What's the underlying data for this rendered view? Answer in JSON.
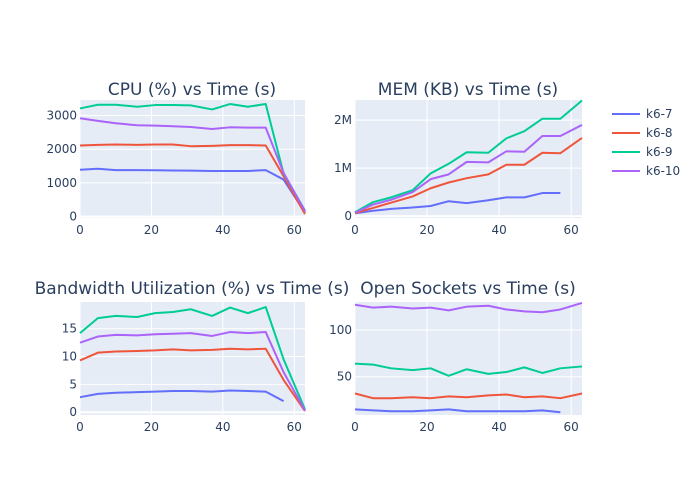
{
  "legend": [
    "k6-7",
    "k6-8",
    "k6-9",
    "k6-10"
  ],
  "colors": {
    "k6-7": "#636efa",
    "k6-8": "#ef553b",
    "k6-9": "#00cc96",
    "k6-10": "#ab63fa",
    "plot_bg": "#e5ecf6",
    "grid": "#ffffff",
    "text": "#2a3f5f"
  },
  "chart_data": [
    {
      "type": "line",
      "title": "CPU (%) vs Time (s)",
      "xlim": [
        0,
        63
      ],
      "ylim": [
        -40,
        3460
      ],
      "xticks": [
        0,
        20,
        40,
        60
      ],
      "yticks": [
        {
          "v": 0,
          "label": "0"
        },
        {
          "v": 1000,
          "label": "1000"
        },
        {
          "v": 2000,
          "label": "2000"
        },
        {
          "v": 3000,
          "label": "3000"
        }
      ],
      "series": [
        {
          "name": "k6-7",
          "x": [
            0,
            5,
            10,
            16,
            21,
            26,
            31,
            37,
            42,
            47,
            52,
            57,
            63
          ],
          "y": [
            1390,
            1420,
            1380,
            1380,
            1375,
            1370,
            1365,
            1355,
            1355,
            1355,
            1380,
            1100,
            120
          ]
        },
        {
          "name": "k6-8",
          "x": [
            0,
            5,
            10,
            16,
            21,
            26,
            31,
            37,
            42,
            47,
            52,
            57,
            63
          ],
          "y": [
            2110,
            2130,
            2140,
            2130,
            2140,
            2140,
            2090,
            2100,
            2120,
            2120,
            2110,
            1200,
            80
          ]
        },
        {
          "name": "k6-9",
          "x": [
            0,
            5,
            10,
            16,
            21,
            26,
            31,
            37,
            42,
            47,
            52,
            57,
            63
          ],
          "y": [
            3210,
            3320,
            3320,
            3260,
            3310,
            3310,
            3300,
            3180,
            3340,
            3260,
            3340,
            1280,
            180
          ]
        },
        {
          "name": "k6-10",
          "x": [
            0,
            5,
            10,
            16,
            21,
            26,
            31,
            37,
            42,
            47,
            52,
            57,
            63
          ],
          "y": [
            2920,
            2840,
            2770,
            2710,
            2700,
            2680,
            2660,
            2600,
            2650,
            2640,
            2640,
            1300,
            160
          ]
        }
      ]
    },
    {
      "type": "line",
      "title": "MEM (KB) vs Time (s)",
      "xlim": [
        0,
        63
      ],
      "ylim": [
        -40000,
        2420000
      ],
      "xticks": [
        0,
        20,
        40,
        60
      ],
      "yticks": [
        {
          "v": 0,
          "label": "0"
        },
        {
          "v": 1000000,
          "label": "1M"
        },
        {
          "v": 2000000,
          "label": "2M"
        }
      ],
      "series": [
        {
          "name": "k6-7",
          "x": [
            0,
            5,
            10,
            16,
            21,
            26,
            31,
            37,
            42,
            47,
            52,
            57
          ],
          "y": [
            60000,
            110000,
            150000,
            180000,
            210000,
            310000,
            270000,
            330000,
            390000,
            390000,
            480000,
            480000
          ]
        },
        {
          "name": "k6-8",
          "x": [
            0,
            5,
            10,
            16,
            21,
            26,
            31,
            37,
            42,
            47,
            52,
            57,
            63
          ],
          "y": [
            60000,
            170000,
            280000,
            410000,
            580000,
            700000,
            790000,
            870000,
            1070000,
            1070000,
            1320000,
            1310000,
            1630000
          ]
        },
        {
          "name": "k6-9",
          "x": [
            0,
            5,
            10,
            16,
            21,
            26,
            31,
            37,
            42,
            47,
            52,
            57,
            63
          ],
          "y": [
            80000,
            290000,
            390000,
            540000,
            890000,
            1090000,
            1330000,
            1320000,
            1620000,
            1770000,
            2030000,
            2030000,
            2410000
          ]
        },
        {
          "name": "k6-10",
          "x": [
            0,
            5,
            10,
            16,
            21,
            26,
            31,
            37,
            42,
            47,
            52,
            57,
            63
          ],
          "y": [
            70000,
            240000,
            340000,
            500000,
            770000,
            870000,
            1130000,
            1120000,
            1350000,
            1340000,
            1670000,
            1670000,
            1900000
          ]
        }
      ]
    },
    {
      "type": "line",
      "title": "Bandwidth Utilization (%) vs Time (s)",
      "xlim": [
        0,
        63
      ],
      "ylim": [
        -0.5,
        19.8
      ],
      "xticks": [
        0,
        20,
        40,
        60
      ],
      "yticks": [
        {
          "v": 0,
          "label": "0"
        },
        {
          "v": 5,
          "label": "5"
        },
        {
          "v": 10,
          "label": "10"
        },
        {
          "v": 15,
          "label": "15"
        }
      ],
      "series": [
        {
          "name": "k6-7",
          "x": [
            0,
            5,
            10,
            16,
            21,
            26,
            31,
            37,
            42,
            47,
            52,
            57
          ],
          "y": [
            2.7,
            3.3,
            3.5,
            3.6,
            3.7,
            3.8,
            3.8,
            3.7,
            3.9,
            3.8,
            3.7,
            2.0
          ]
        },
        {
          "name": "k6-8",
          "x": [
            0,
            5,
            10,
            16,
            21,
            26,
            31,
            37,
            42,
            47,
            52,
            57,
            63
          ],
          "y": [
            9.3,
            10.7,
            10.9,
            11.0,
            11.1,
            11.3,
            11.1,
            11.2,
            11.4,
            11.3,
            11.4,
            5.8,
            0.2
          ]
        },
        {
          "name": "k6-9",
          "x": [
            0,
            5,
            10,
            16,
            21,
            26,
            31,
            37,
            42,
            47,
            52,
            57,
            63
          ],
          "y": [
            14.2,
            16.9,
            17.3,
            17.1,
            17.8,
            18.0,
            18.5,
            17.3,
            18.8,
            17.8,
            18.9,
            9.5,
            0.5
          ]
        },
        {
          "name": "k6-10",
          "x": [
            0,
            5,
            10,
            16,
            21,
            26,
            31,
            37,
            42,
            47,
            52,
            57,
            63
          ],
          "y": [
            12.5,
            13.6,
            13.9,
            13.8,
            14.0,
            14.1,
            14.2,
            13.7,
            14.4,
            14.2,
            14.4,
            7.2,
            0.3
          ]
        }
      ]
    },
    {
      "type": "line",
      "title": "Open Sockets vs Time (s)",
      "xlim": [
        0,
        63
      ],
      "ylim": [
        9,
        130
      ],
      "xticks": [
        0,
        20,
        40,
        60
      ],
      "yticks": [
        {
          "v": 50,
          "label": "50"
        },
        {
          "v": 100,
          "label": "100"
        }
      ],
      "series": [
        {
          "name": "k6-7",
          "x": [
            0,
            5,
            10,
            16,
            21,
            26,
            31,
            37,
            42,
            47,
            52,
            57
          ],
          "y": [
            15,
            14,
            13,
            13,
            14,
            15,
            13,
            13,
            13,
            13,
            14,
            12
          ]
        },
        {
          "name": "k6-8",
          "x": [
            0,
            5,
            10,
            16,
            21,
            26,
            31,
            37,
            42,
            47,
            52,
            57,
            63
          ],
          "y": [
            32,
            27,
            27,
            28,
            27,
            29,
            28,
            30,
            31,
            28,
            29,
            27,
            32
          ]
        },
        {
          "name": "k6-9",
          "x": [
            0,
            5,
            10,
            16,
            21,
            26,
            31,
            37,
            42,
            47,
            52,
            57,
            63
          ],
          "y": [
            64,
            63,
            59,
            57,
            59,
            51,
            58,
            53,
            55,
            60,
            54,
            59,
            61
          ]
        },
        {
          "name": "k6-10",
          "x": [
            0,
            5,
            10,
            16,
            21,
            26,
            31,
            37,
            42,
            47,
            52,
            57,
            63
          ],
          "y": [
            127,
            124,
            125,
            123,
            124,
            121,
            125,
            126,
            122,
            120,
            119,
            122,
            129
          ]
        }
      ]
    }
  ]
}
